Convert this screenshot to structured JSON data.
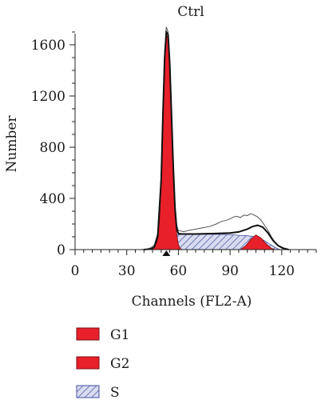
{
  "chart_data": {
    "type": "area",
    "title": "Ctrl",
    "xlabel": "Channels (FL2-A)",
    "ylabel": "Number",
    "xlim": [
      0,
      140
    ],
    "ylim": [
      0,
      1700
    ],
    "xticks": [
      0,
      30,
      60,
      90,
      120
    ],
    "yticks": [
      0,
      400,
      800,
      1200,
      1600
    ],
    "grid": false,
    "legend_position": "bottom-left",
    "marker_x": 53,
    "series": [
      {
        "name": "G1",
        "fill": "#e8202a",
        "style": "solid",
        "points": [
          [
            44,
            0
          ],
          [
            46,
            15
          ],
          [
            47.5,
            60
          ],
          [
            49,
            220
          ],
          [
            50,
            550
          ],
          [
            51,
            1050
          ],
          [
            52,
            1500
          ],
          [
            53,
            1680
          ],
          [
            54,
            1650
          ],
          [
            55,
            1400
          ],
          [
            56,
            1000
          ],
          [
            57,
            600
          ],
          [
            58,
            300
          ],
          [
            59,
            120
          ],
          [
            60,
            40
          ],
          [
            61,
            10
          ],
          [
            62,
            0
          ]
        ]
      },
      {
        "name": "G2",
        "fill": "#e8202a",
        "style": "solid",
        "points": [
          [
            96,
            0
          ],
          [
            99,
            30
          ],
          [
            102,
            80
          ],
          [
            105,
            115
          ],
          [
            108,
            90
          ],
          [
            111,
            45
          ],
          [
            114,
            10
          ],
          [
            116,
            0
          ]
        ]
      },
      {
        "name": "S",
        "fill": "#3f4fa0",
        "style": "hatched",
        "points": [
          [
            53,
            0
          ],
          [
            55,
            60
          ],
          [
            57,
            105
          ],
          [
            60,
            118
          ],
          [
            70,
            120
          ],
          [
            80,
            120
          ],
          [
            90,
            118
          ],
          [
            95,
            112
          ],
          [
            100,
            108
          ],
          [
            105,
            100
          ],
          [
            110,
            70
          ],
          [
            114,
            35
          ],
          [
            117,
            10
          ],
          [
            119,
            0
          ]
        ]
      }
    ],
    "fit_line": [
      [
        40,
        0
      ],
      [
        44,
        5
      ],
      [
        46,
        20
      ],
      [
        48,
        100
      ],
      [
        50,
        550
      ],
      [
        51,
        1050
      ],
      [
        52,
        1500
      ],
      [
        53,
        1700
      ],
      [
        54,
        1680
      ],
      [
        55,
        1450
      ],
      [
        56,
        1050
      ],
      [
        57,
        650
      ],
      [
        58,
        330
      ],
      [
        59,
        160
      ],
      [
        60,
        125
      ],
      [
        62,
        122
      ],
      [
        70,
        122
      ],
      [
        80,
        125
      ],
      [
        90,
        130
      ],
      [
        95,
        138
      ],
      [
        100,
        160
      ],
      [
        103,
        180
      ],
      [
        106,
        190
      ],
      [
        109,
        175
      ],
      [
        112,
        130
      ],
      [
        115,
        70
      ],
      [
        118,
        30
      ],
      [
        121,
        10
      ],
      [
        124,
        0
      ]
    ],
    "data_line": [
      [
        38,
        0
      ],
      [
        42,
        5
      ],
      [
        44,
        15
      ],
      [
        46,
        35
      ],
      [
        48,
        130
      ],
      [
        50,
        580
      ],
      [
        51,
        1080
      ],
      [
        52,
        1550
      ],
      [
        53,
        1740
      ],
      [
        54,
        1700
      ],
      [
        55,
        1480
      ],
      [
        56,
        1080
      ],
      [
        57,
        680
      ],
      [
        58,
        360
      ],
      [
        59,
        190
      ],
      [
        60,
        150
      ],
      [
        63,
        140
      ],
      [
        66,
        150
      ],
      [
        70,
        160
      ],
      [
        74,
        170
      ],
      [
        78,
        180
      ],
      [
        82,
        200
      ],
      [
        85,
        220
      ],
      [
        88,
        230
      ],
      [
        90,
        240
      ],
      [
        92,
        255
      ],
      [
        94,
        260
      ],
      [
        96,
        250
      ],
      [
        98,
        270
      ],
      [
        100,
        265
      ],
      [
        102,
        280
      ],
      [
        104,
        270
      ],
      [
        106,
        255
      ],
      [
        108,
        230
      ],
      [
        110,
        190
      ],
      [
        112,
        150
      ],
      [
        114,
        100
      ],
      [
        116,
        60
      ],
      [
        118,
        30
      ],
      [
        120,
        12
      ],
      [
        122,
        5
      ],
      [
        125,
        0
      ]
    ]
  }
}
